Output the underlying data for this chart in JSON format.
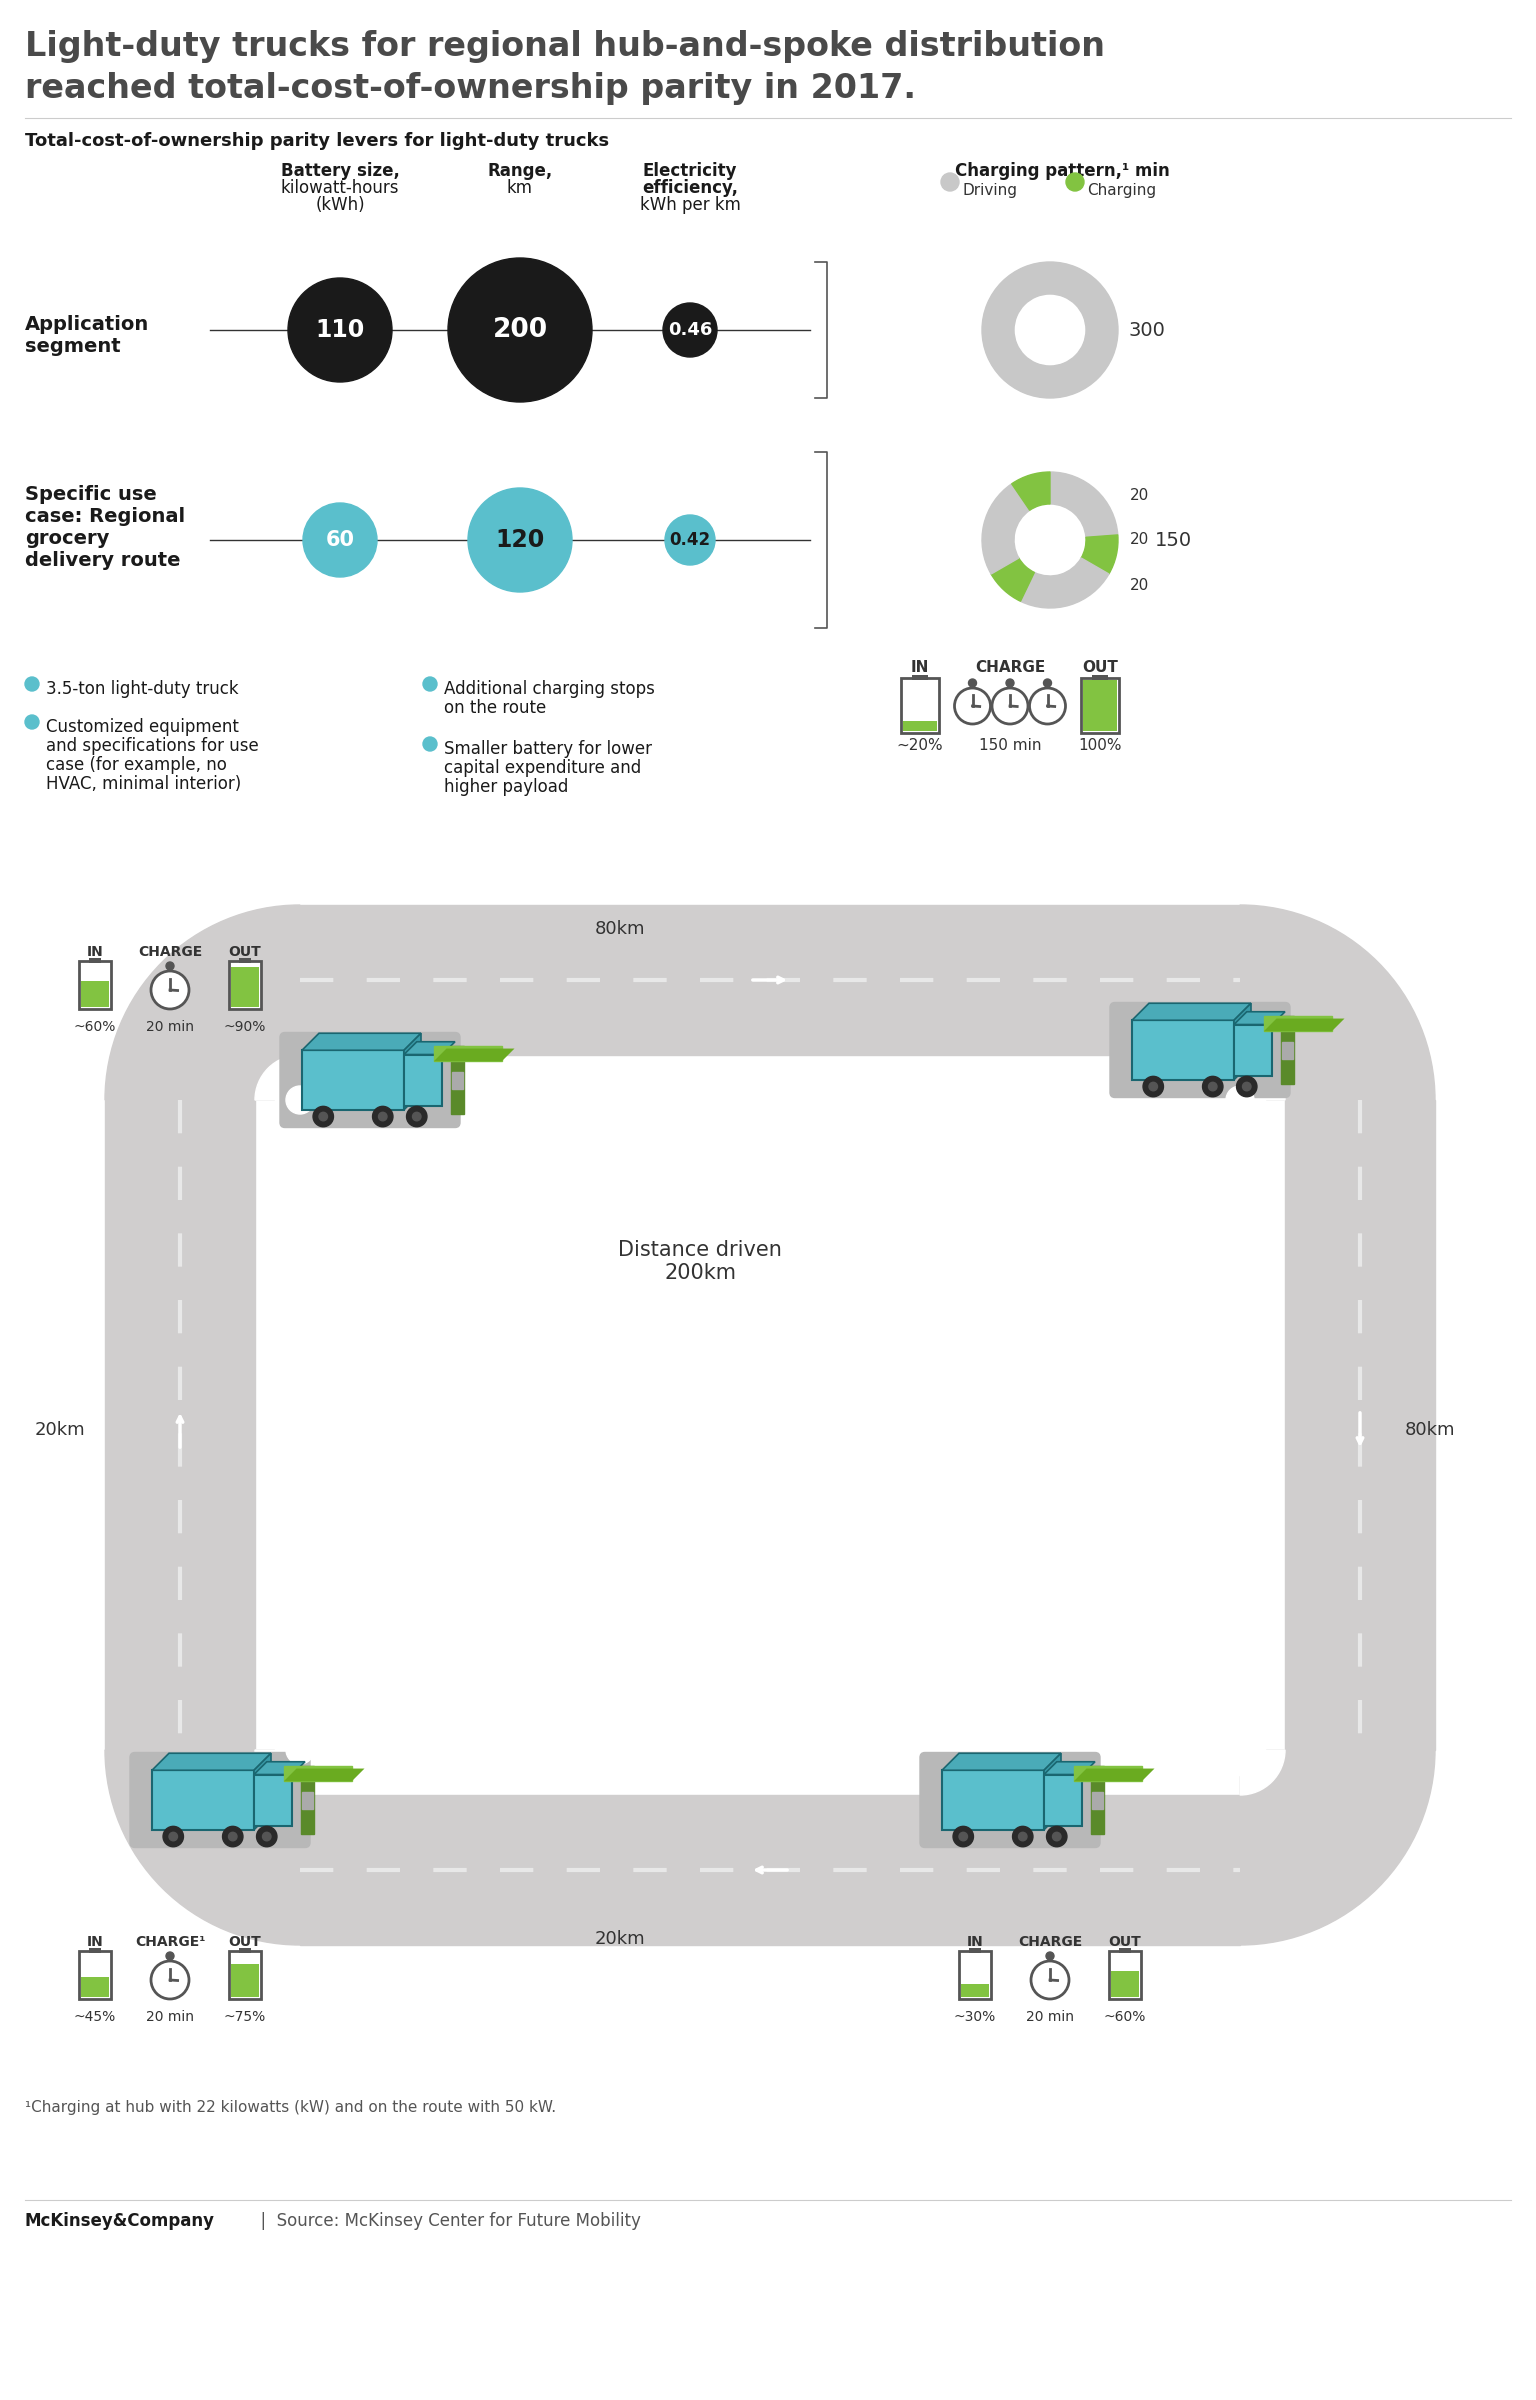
{
  "title_line1": "Light-duty trucks for regional hub-and-spoke distribution",
  "title_line2": "reached total-cost-of-ownership parity in 2017.",
  "subtitle": "Total-cost-of-ownership parity levers for light-duty trucks",
  "app_color": "#1a1a1a",
  "use_color": "#5abfcc",
  "charging_driving_color": "#c8c8c8",
  "charging_green_color": "#82c341",
  "legend_driving": "Driving",
  "legend_charging": "Charging",
  "bullet1": "3.5-ton light-duty truck",
  "bullet2a": "Customized equipment",
  "bullet2b": "and specifications for use",
  "bullet2c": "case (for example, no",
  "bullet2d": "HVAC, minimal interior)",
  "bullet3a": "Additional charging stops",
  "bullet3b": "on the route",
  "bullet4a": "Smaller battery for lower",
  "bullet4b": "capital expenditure and",
  "bullet4c": "higher payload",
  "footnote": "¹Charging at hub with 22 kilowatts (kW) and on the route with 50 kW.",
  "bg_color": "#ffffff",
  "road_color": "#d0cece",
  "road_stripe_color": "#f0f0f0",
  "truck_body_color": "#5abfcc",
  "truck_outline_color": "#1a6670",
  "charger_color": "#82c341",
  "charger_dark": "#5a8a2a"
}
